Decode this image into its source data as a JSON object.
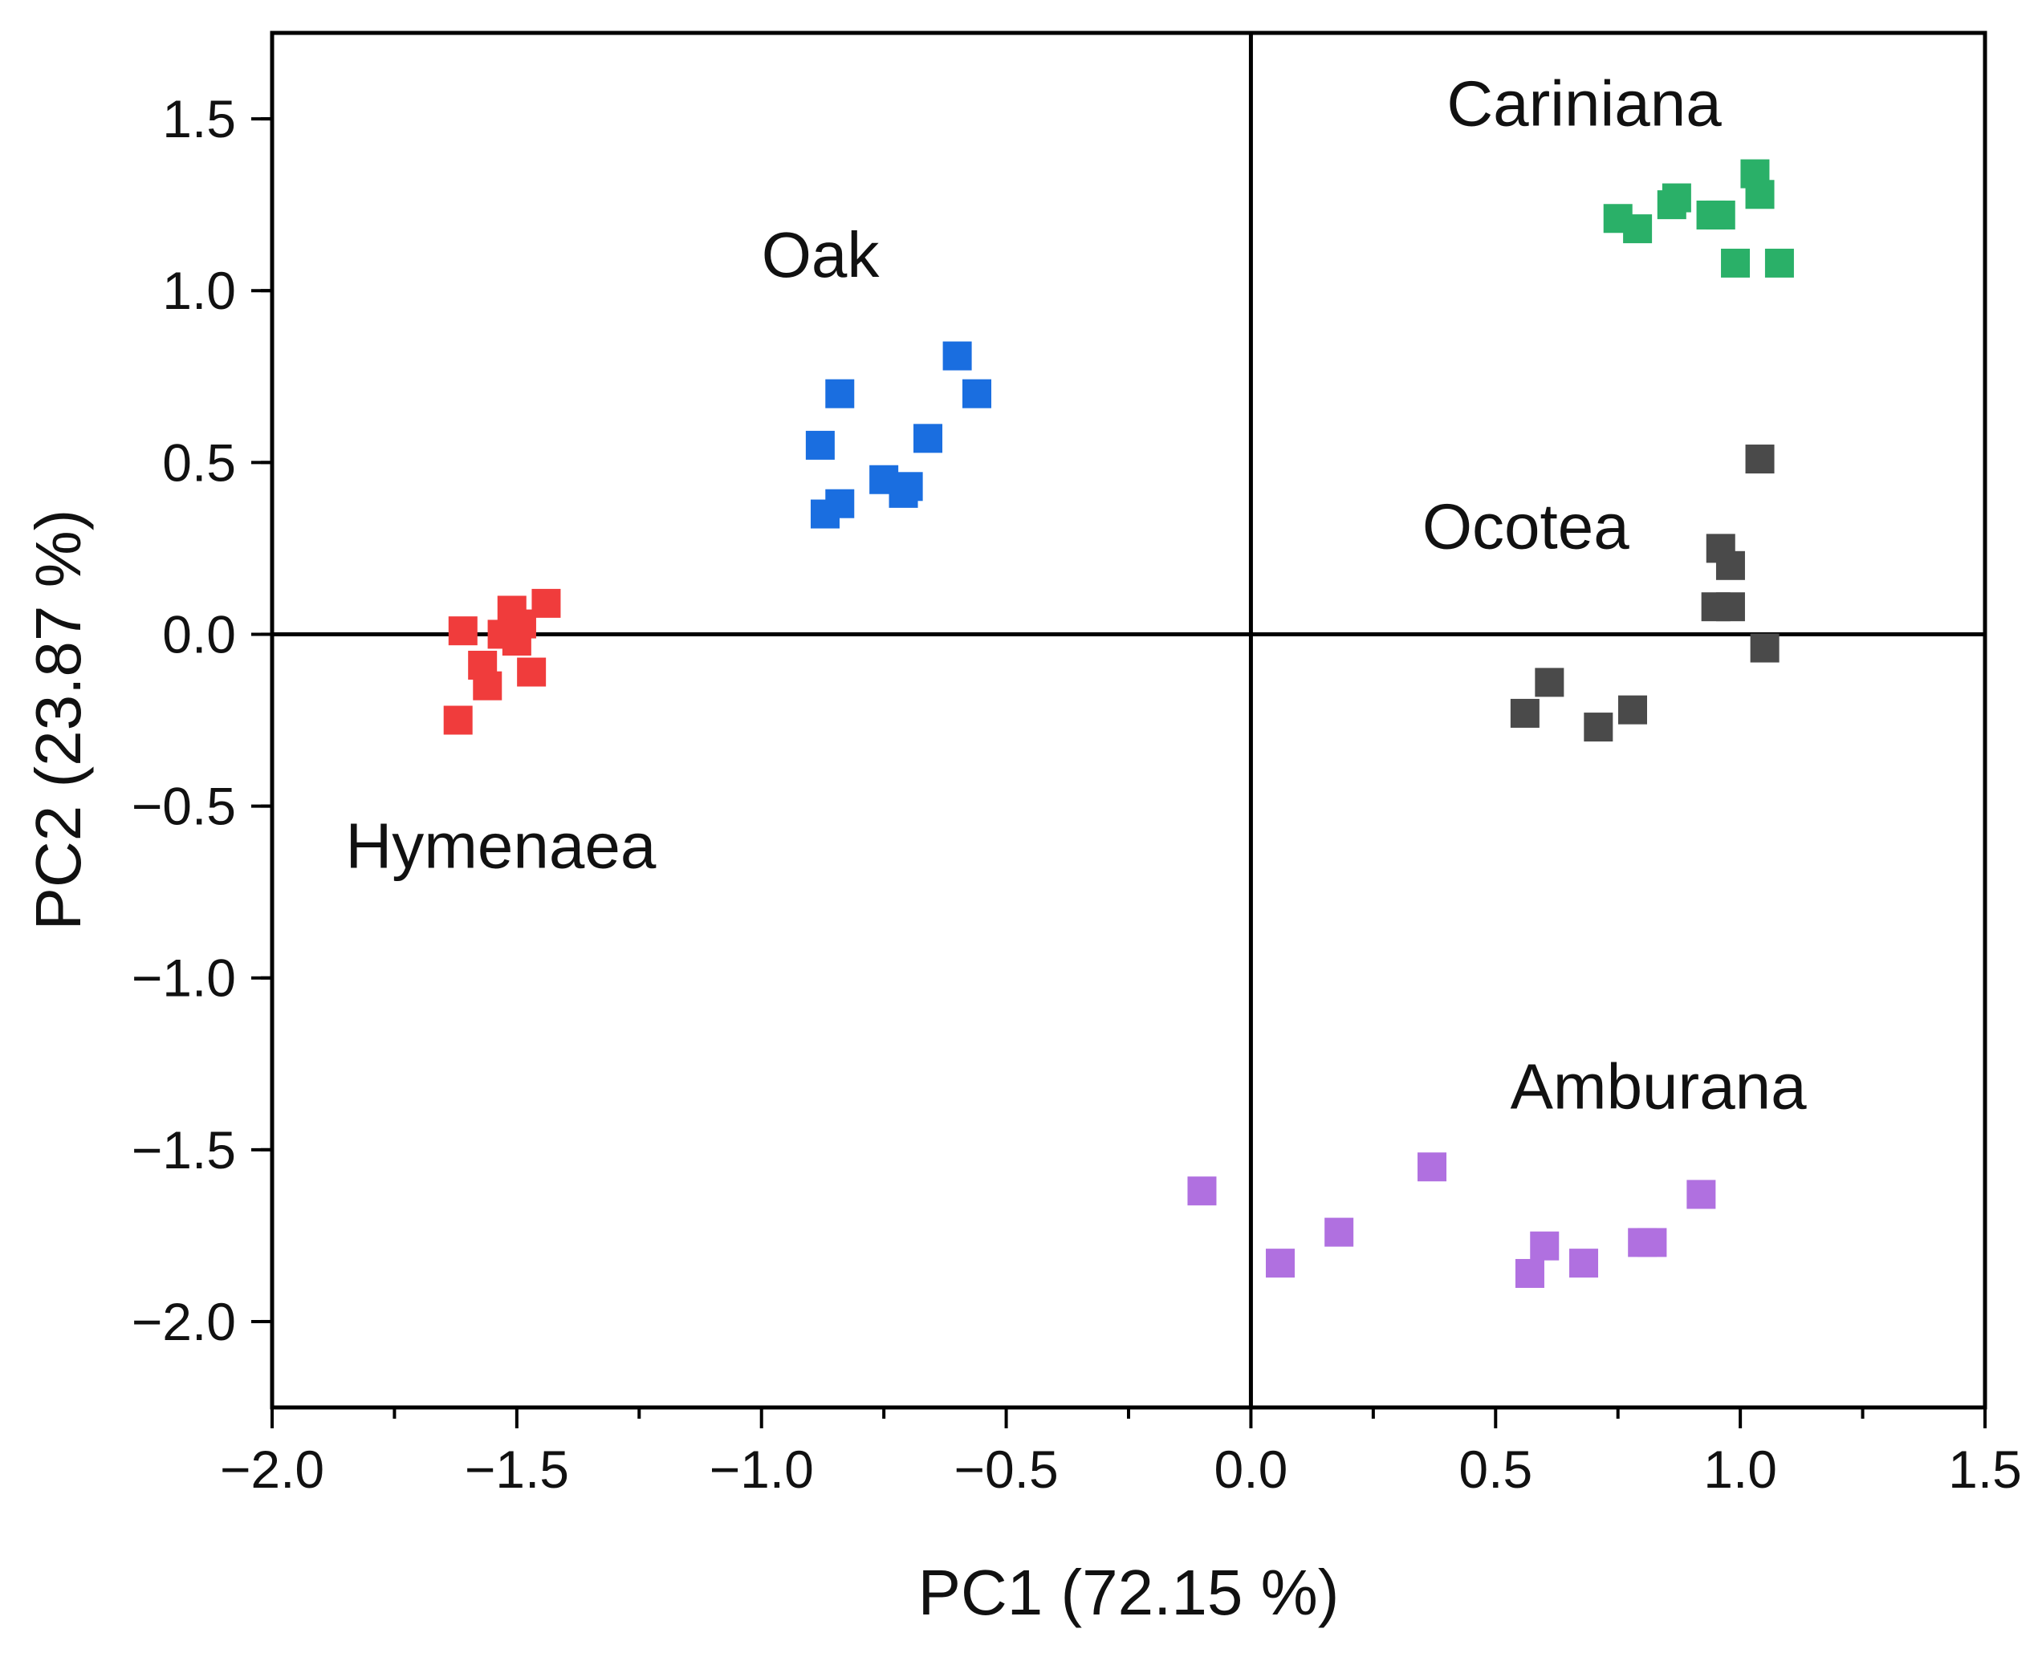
{
  "chart_data": {
    "type": "scatter",
    "title": "",
    "xlabel": "PC1 (72.15 %)",
    "ylabel": "PC2 (23.87 %)",
    "xlim": [
      -2.0,
      1.5
    ],
    "ylim": [
      -2.25,
      1.75
    ],
    "x_ticks": [
      -2.0,
      -1.5,
      -1.0,
      -0.5,
      0.0,
      0.5,
      1.0,
      1.5
    ],
    "x_tick_labels": [
      "−2.0",
      "−1.5",
      "−1.0",
      "−0.5",
      "0.0",
      "0.5",
      "1.0",
      "1.5"
    ],
    "y_ticks": [
      1.5,
      1.0,
      0.5,
      0.0,
      -0.5,
      -1.0,
      -1.5,
      -2.0
    ],
    "y_tick_labels": [
      "1.5",
      "1.0",
      "0.5",
      "0.0",
      "−0.5",
      "−1.0",
      "−1.5",
      "−2.0"
    ],
    "reference_lines": {
      "x": 0.0,
      "y": 0.0
    },
    "grid": false,
    "marker": "square",
    "series": [
      {
        "name": "Hymenaea",
        "color": "#f03c3c",
        "label_anchor": [
          -1.85,
          -0.68
        ],
        "points": [
          [
            -1.61,
            0.01
          ],
          [
            -1.51,
            0.07
          ],
          [
            -1.44,
            0.09
          ],
          [
            -1.53,
            0.0
          ],
          [
            -1.49,
            0.03
          ],
          [
            -1.5,
            -0.02
          ],
          [
            -1.57,
            -0.09
          ],
          [
            -1.56,
            -0.15
          ],
          [
            -1.47,
            -0.11
          ],
          [
            -1.62,
            -0.25
          ]
        ]
      },
      {
        "name": "Oak",
        "color": "#1a6ee0",
        "label_anchor": [
          -1.0,
          1.04
        ],
        "points": [
          [
            -0.84,
            0.7
          ],
          [
            -0.6,
            0.81
          ],
          [
            -0.56,
            0.7
          ],
          [
            -0.66,
            0.57
          ],
          [
            -0.88,
            0.55
          ],
          [
            -0.75,
            0.45
          ],
          [
            -0.7,
            0.43
          ],
          [
            -0.71,
            0.41
          ],
          [
            -0.84,
            0.38
          ],
          [
            -0.87,
            0.35
          ]
        ]
      },
      {
        "name": "Cariniana",
        "color": "#2ab068",
        "label_anchor": [
          0.4,
          1.48
        ],
        "points": [
          [
            1.03,
            1.34
          ],
          [
            1.04,
            1.28
          ],
          [
            0.87,
            1.27
          ],
          [
            0.86,
            1.25
          ],
          [
            0.75,
            1.21
          ],
          [
            0.79,
            1.18
          ],
          [
            0.94,
            1.22
          ],
          [
            0.96,
            1.22
          ],
          [
            0.99,
            1.08
          ],
          [
            1.08,
            1.08
          ]
        ]
      },
      {
        "name": "Ocotea",
        "color": "#4a4a4a",
        "label_anchor": [
          0.35,
          0.25
        ],
        "points": [
          [
            1.04,
            0.51
          ],
          [
            0.96,
            0.25
          ],
          [
            0.98,
            0.2
          ],
          [
            0.95,
            0.08
          ],
          [
            0.98,
            0.08
          ],
          [
            1.05,
            -0.04
          ],
          [
            0.61,
            -0.14
          ],
          [
            0.56,
            -0.23
          ],
          [
            0.78,
            -0.22
          ],
          [
            0.71,
            -0.27
          ]
        ]
      },
      {
        "name": "Amburana",
        "color": "#b070e0",
        "label_anchor": [
          0.53,
          -1.38
        ],
        "points": [
          [
            -0.1,
            -1.62
          ],
          [
            0.37,
            -1.55
          ],
          [
            0.92,
            -1.63
          ],
          [
            0.18,
            -1.74
          ],
          [
            0.06,
            -1.83
          ],
          [
            0.6,
            -1.78
          ],
          [
            0.8,
            -1.77
          ],
          [
            0.82,
            -1.77
          ],
          [
            0.68,
            -1.83
          ],
          [
            0.57,
            -1.86
          ]
        ]
      }
    ]
  }
}
